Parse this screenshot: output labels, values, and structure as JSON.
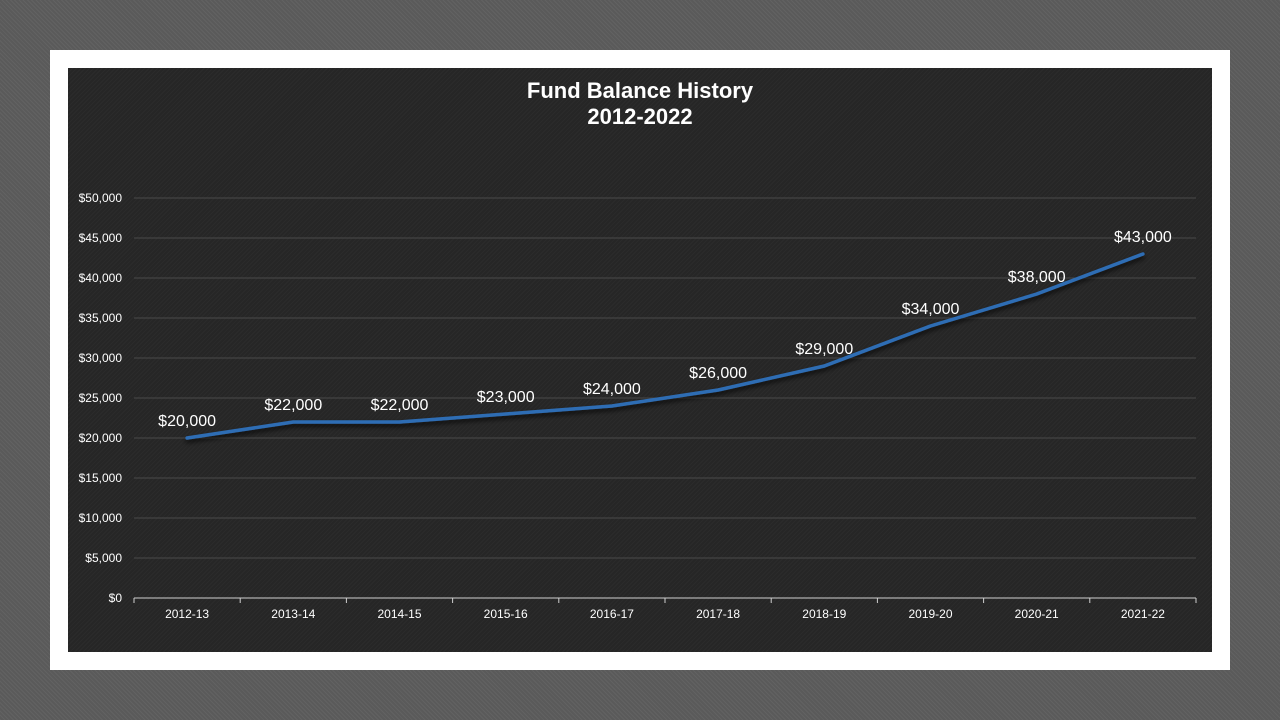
{
  "chart_data": {
    "type": "line",
    "title_line1": "Fund Balance History",
    "title_line2": "2012-2022",
    "categories": [
      "2012-13",
      "2013-14",
      "2014-15",
      "2015-16",
      "2016-17",
      "2017-18",
      "2018-19",
      "2019-20",
      "2020-21",
      "2021-22"
    ],
    "values": [
      20000,
      22000,
      22000,
      23000,
      24000,
      26000,
      29000,
      34000,
      38000,
      43000
    ],
    "data_labels": [
      "$20,000",
      "$22,000",
      "$22,000",
      "$23,000",
      "$24,000",
      "$26,000",
      "$29,000",
      "$34,000",
      "$38,000",
      "$43,000"
    ],
    "y_ticks": [
      0,
      5000,
      10000,
      15000,
      20000,
      25000,
      30000,
      35000,
      40000,
      45000,
      50000
    ],
    "y_tick_labels": [
      "$0",
      "$5,000",
      "$10,000",
      "$15,000",
      "$20,000",
      "$25,000",
      "$30,000",
      "$35,000",
      "$40,000",
      "$45,000",
      "$50,000"
    ],
    "ylim": [
      0,
      50000
    ],
    "grid": true,
    "legend": "none",
    "line_color": "#2e6db4"
  }
}
